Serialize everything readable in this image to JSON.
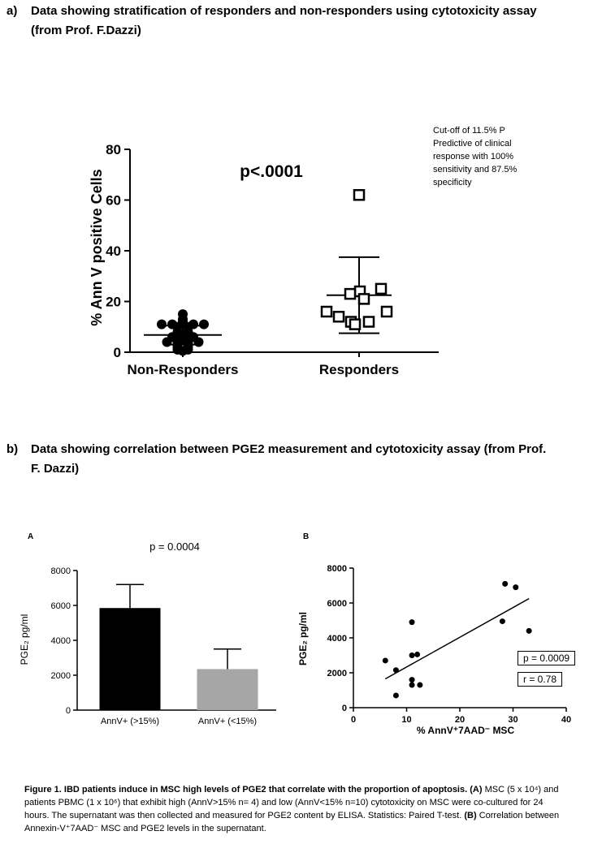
{
  "section_a": {
    "label": "a)",
    "line1": "Data showing stratification of responders and non-responders using cytotoxicity assay",
    "line2": "(from Prof. F.Dazzi)"
  },
  "section_b": {
    "label": "b)",
    "line1": "Data showing correlation between PGE2 measurement and cytotoxicity assay (from Prof.",
    "line2": "F. Dazzi)"
  },
  "annotation_a": {
    "lines": [
      "Cut-off of 11.5% P",
      "Predictive of clinical",
      "response with 100%",
      "sensitivity and 87.5%",
      "specificity"
    ]
  },
  "panel_labels": {
    "A": "A",
    "B": "B"
  },
  "caption": {
    "bold_title": "Figure 1. IBD patients induce in MSC high levels of PGE2 that correlate with the proportion of apoptosis.",
    "part_A_label": "(A)",
    "part_A_text": "MSC (5 x 10⁴) and patients PBMC (1 x 10⁶) that exhibit high (AnnV>15% n= 4) and low (AnnV<15% n=10) cytotoxicity on MSC were co-cultured for 24 hours. The supernatant was then collected and measured for PGE2 content by ELISA. Statistics: Paired T-test.",
    "part_B_label": "(B)",
    "part_B_text": "Correlation between Annexin-V⁺7AAD⁻ MSC and PGE2 levels in the supernatant."
  },
  "chart_data": [
    {
      "type": "scatter",
      "title": "p<.0001",
      "ylabel": "% Ann V positive Cells",
      "xlabel": "",
      "categories": [
        "Non-Responders",
        "Responders"
      ],
      "ylim": [
        0,
        80
      ],
      "yticks": [
        0,
        20,
        40,
        60,
        80
      ],
      "grid": false,
      "series": [
        {
          "name": "Non-Responders",
          "marker": "filled-circle",
          "values": [
            15,
            12,
            13,
            11,
            11,
            11,
            11,
            11,
            10,
            10,
            8,
            8,
            7,
            6,
            6,
            6,
            5,
            5,
            4,
            4,
            4,
            4,
            3,
            3,
            2,
            2,
            1,
            1,
            0.5
          ],
          "mean": 6.8,
          "sd_upper": 10.5,
          "sd_lower": 3.0
        },
        {
          "name": "Responders",
          "marker": "open-square",
          "values": [
            62,
            25,
            24,
            23,
            21,
            16,
            16,
            14,
            12,
            12,
            11
          ],
          "mean": 22.5,
          "sd_upper": 37.5,
          "sd_lower": 7.5
        }
      ]
    },
    {
      "type": "bar",
      "title": "p = 0.0004",
      "ylabel": "PGE₂ pg/ml",
      "xlabel": "",
      "categories": [
        "AnnV+ (>15%)",
        "AnnV+ (<15%)"
      ],
      "values": [
        5850,
        2350
      ],
      "error_upper": [
        7200,
        3500
      ],
      "colors": [
        "#000000",
        "#a6a6a6"
      ],
      "ylim": [
        0,
        8000
      ],
      "yticks": [
        0,
        2000,
        4000,
        6000,
        8000
      ],
      "grid": false
    },
    {
      "type": "scatter",
      "title": "",
      "ylabel": "PGE₂ pg/ml",
      "xlabel": "% AnnV⁺7AAD⁻ MSC",
      "xlim": [
        0,
        40
      ],
      "ylim": [
        0,
        8000
      ],
      "xticks": [
        0,
        10,
        20,
        30,
        40
      ],
      "yticks": [
        0,
        2000,
        4000,
        6000,
        8000
      ],
      "grid": false,
      "points": [
        {
          "x": 6,
          "y": 2700
        },
        {
          "x": 8,
          "y": 2150
        },
        {
          "x": 8,
          "y": 700
        },
        {
          "x": 11,
          "y": 4900
        },
        {
          "x": 11,
          "y": 3000
        },
        {
          "x": 12,
          "y": 3050
        },
        {
          "x": 11,
          "y": 1600
        },
        {
          "x": 11,
          "y": 1300
        },
        {
          "x": 12.5,
          "y": 1300
        },
        {
          "x": 28.5,
          "y": 7100
        },
        {
          "x": 30.5,
          "y": 6900
        },
        {
          "x": 28,
          "y": 4950
        },
        {
          "x": 33,
          "y": 4400
        }
      ],
      "regression_line": {
        "x": [
          6,
          33
        ],
        "y": [
          1650,
          6250
        ]
      },
      "stats": {
        "p": "p = 0.0009",
        "r": "r = 0.78"
      }
    }
  ]
}
